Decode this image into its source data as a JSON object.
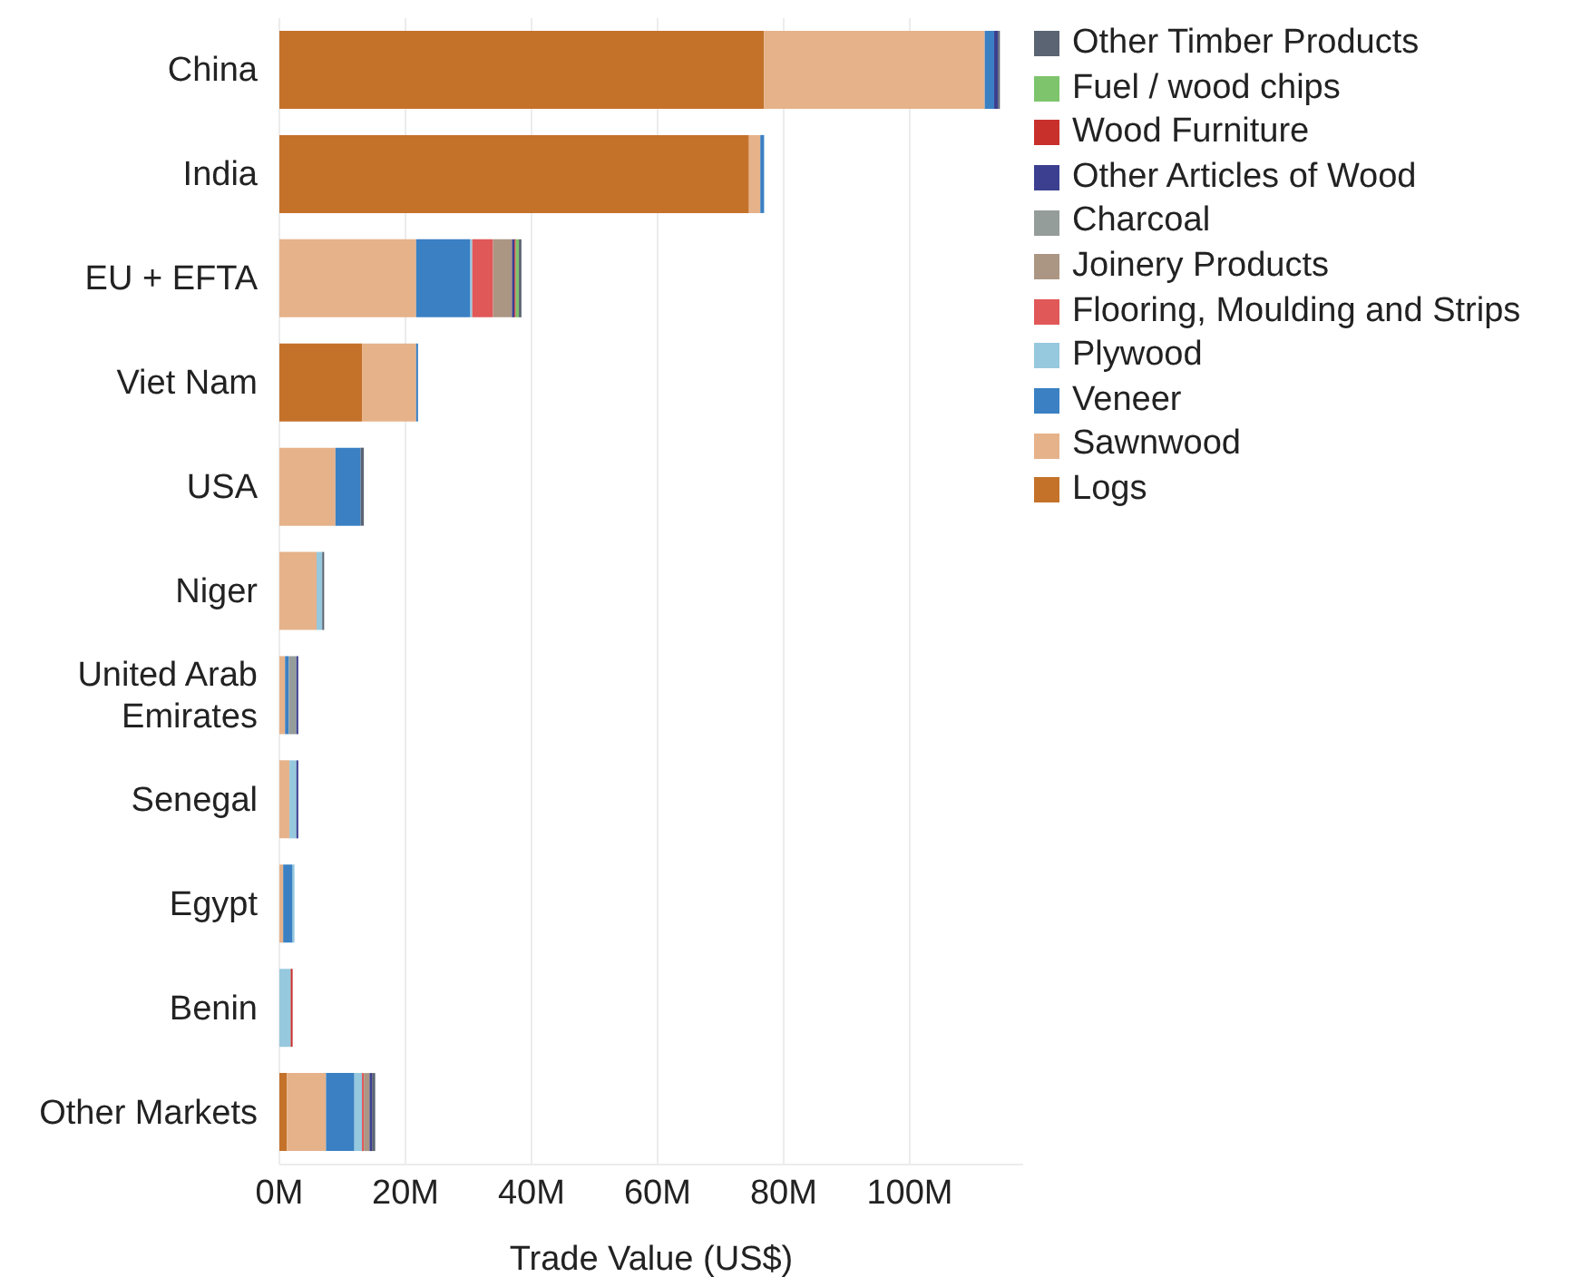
{
  "chart_data": {
    "type": "bar",
    "orientation": "horizontal",
    "stacked": true,
    "xlabel": "Trade Value (US$)",
    "categories": [
      "China",
      "India",
      "EU + EFTA",
      "Viet Nam",
      "USA",
      "Niger",
      "United Arab Emirates",
      "Senegal",
      "Egypt",
      "Benin",
      "Other Markets"
    ],
    "series": [
      {
        "name": "Logs",
        "color": "#c4722a",
        "values": [
          76.9,
          74.5,
          null,
          13.1,
          null,
          null,
          null,
          null,
          null,
          null,
          1.2
        ]
      },
      {
        "name": "Sawnwood",
        "color": "#e6b28a",
        "values": [
          35.0,
          1.8,
          21.7,
          8.6,
          8.9,
          5.9,
          0.9,
          1.6,
          0.6,
          null,
          6.2
        ]
      },
      {
        "name": "Veneer",
        "color": "#3a80c3",
        "values": [
          1.5,
          0.6,
          8.6,
          0.3,
          4.0,
          null,
          0.6,
          null,
          1.5,
          null,
          4.5
        ]
      },
      {
        "name": "Plywood",
        "color": "#96c8de",
        "values": [
          null,
          null,
          0.3,
          null,
          null,
          0.9,
          null,
          1.1,
          0.3,
          1.8,
          1.2
        ]
      },
      {
        "name": "Flooring, Moulding and Strips",
        "color": "#e05858",
        "values": [
          null,
          null,
          3.3,
          null,
          null,
          null,
          null,
          null,
          null,
          null,
          0.3
        ]
      },
      {
        "name": "Joinery Products",
        "color": "#ab9683",
        "values": [
          null,
          null,
          3.0,
          null,
          null,
          null,
          null,
          null,
          null,
          null,
          0.9
        ]
      },
      {
        "name": "Charcoal",
        "color": "#959d9b",
        "values": [
          null,
          null,
          null,
          null,
          null,
          null,
          1.2,
          null,
          null,
          null,
          null
        ]
      },
      {
        "name": "Other Articles of Wood",
        "color": "#3c3f8f",
        "values": [
          0.6,
          null,
          0.4,
          null,
          null,
          null,
          0.3,
          0.3,
          null,
          null,
          0.4
        ]
      },
      {
        "name": "Wood Furniture",
        "color": "#c8302c",
        "values": [
          null,
          null,
          0.2,
          null,
          null,
          null,
          null,
          null,
          null,
          0.3,
          null
        ]
      },
      {
        "name": "Fuel / wood chips",
        "color": "#7dc46c",
        "values": [
          null,
          null,
          0.5,
          null,
          null,
          null,
          null,
          null,
          null,
          null,
          null
        ]
      },
      {
        "name": "Other Timber Products",
        "color": "#5a6472",
        "values": [
          0.3,
          null,
          0.4,
          null,
          0.5,
          0.3,
          null,
          null,
          null,
          null,
          0.5
        ]
      }
    ],
    "xlim": [
      0,
      118
    ],
    "xticks": [
      {
        "value": 0,
        "label": "0M"
      },
      {
        "value": 20,
        "label": "20M"
      },
      {
        "value": 40,
        "label": "40M"
      },
      {
        "value": 60,
        "label": "60M"
      },
      {
        "value": 80,
        "label": "80M"
      },
      {
        "value": 100,
        "label": "100M"
      }
    ],
    "grid": "x",
    "legend": "right"
  }
}
